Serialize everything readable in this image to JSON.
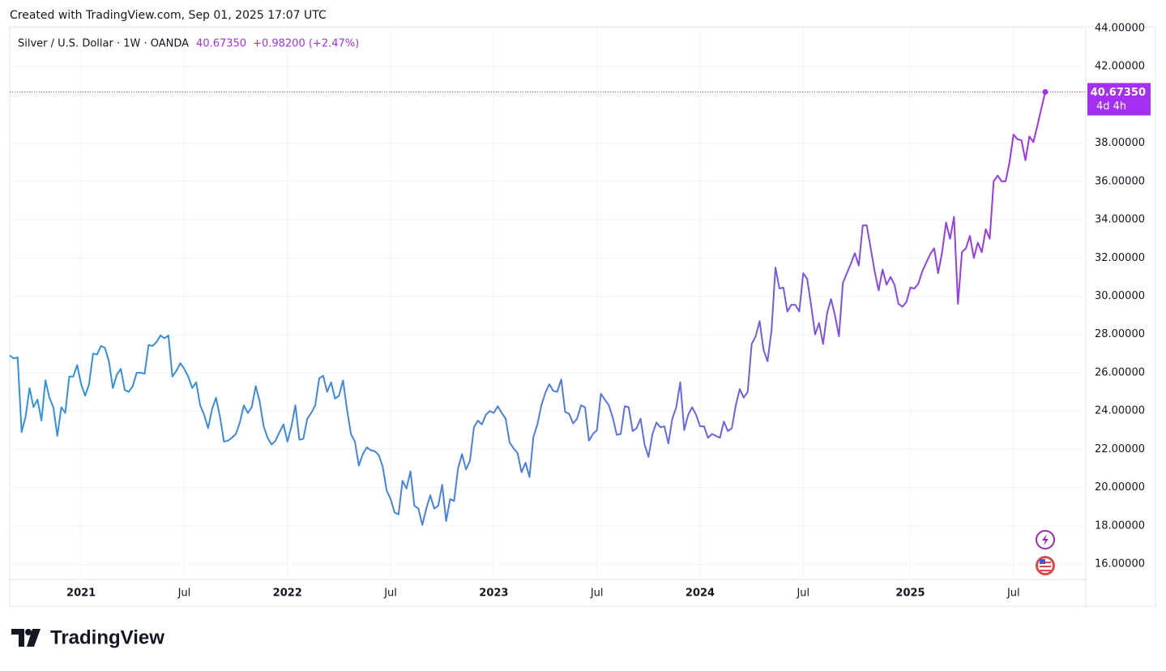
{
  "header": {
    "created": "Created with TradingView.com, Sep 01, 2025 17:07 UTC",
    "brand": "TradingView"
  },
  "chart_data": {
    "type": "line",
    "title": "Silver / U.S. Dollar · 1W · OANDA",
    "last_label": "40.67350",
    "change_label": "+0.98200 (+2.47%)",
    "countdown": "4d 4h",
    "last_color": "#a42ff0",
    "categories": [
      null,
      null,
      null,
      null,
      null,
      null,
      null,
      null,
      null,
      null,
      null,
      null,
      null,
      null,
      null,
      null,
      null,
      null,
      "2021",
      null,
      null,
      null,
      null,
      null,
      null,
      null,
      null,
      null,
      null,
      null,
      null,
      null,
      null,
      null,
      null,
      null,
      null,
      null,
      null,
      null,
      null,
      null,
      null,
      null,
      "Jul",
      null,
      null,
      null,
      null,
      null,
      null,
      null,
      null,
      null,
      null,
      null,
      null,
      null,
      null,
      null,
      null,
      null,
      null,
      null,
      null,
      null,
      null,
      null,
      null,
      null,
      "2022",
      null,
      null,
      null,
      null,
      null,
      null,
      null,
      null,
      null,
      null,
      null,
      null,
      null,
      null,
      null,
      null,
      null,
      null,
      null,
      null,
      null,
      null,
      null,
      null,
      null,
      "Jul",
      null,
      null,
      null,
      null,
      null,
      null,
      null,
      null,
      null,
      null,
      null,
      null,
      null,
      null,
      null,
      null,
      null,
      null,
      null,
      null,
      null,
      null,
      null,
      null,
      null,
      "2023",
      null,
      null,
      null,
      null,
      null,
      null,
      null,
      null,
      null,
      null,
      null,
      null,
      null,
      null,
      null,
      null,
      null,
      null,
      null,
      null,
      null,
      null,
      null,
      null,
      null,
      "Jul",
      null,
      null,
      null,
      null,
      null,
      null,
      null,
      null,
      null,
      null,
      null,
      null,
      null,
      null,
      null,
      null,
      null,
      null,
      null,
      null,
      null,
      null,
      null,
      null,
      null,
      "2024",
      null,
      null,
      null,
      null,
      null,
      null,
      null,
      null,
      null,
      null,
      null,
      null,
      null,
      null,
      null,
      null,
      null,
      null,
      null,
      null,
      null,
      null,
      null,
      null,
      null,
      "Jul",
      null,
      null,
      null,
      null,
      null,
      null,
      null,
      null,
      null,
      null,
      null,
      null,
      null,
      null,
      null,
      null,
      null,
      null,
      null,
      null,
      null,
      null,
      null,
      null,
      null,
      null,
      "2025",
      null,
      null,
      null,
      null,
      null,
      null,
      null,
      null,
      null,
      null,
      null,
      null,
      null,
      null,
      null,
      null,
      null,
      null,
      null,
      null,
      null,
      null,
      null,
      null,
      null,
      "Jul",
      null,
      null,
      null,
      null,
      null,
      null,
      null,
      null
    ],
    "series": [
      {
        "colors": [
          "#2f93e0",
          "#4a7fe6",
          "#a42ff0"
        ],
        "values": [
          26.9,
          26.75,
          26.8,
          22.9,
          23.7,
          25.2,
          24.2,
          24.6,
          23.5,
          25.6,
          24.7,
          24.2,
          22.7,
          24.2,
          23.9,
          25.8,
          25.8,
          26.4,
          25.4,
          24.8,
          25.4,
          27.0,
          26.95,
          27.4,
          27.3,
          26.6,
          25.2,
          25.9,
          26.2,
          25.1,
          25.0,
          25.3,
          26.0,
          26.0,
          25.95,
          27.45,
          27.4,
          27.6,
          27.95,
          27.8,
          27.95,
          25.8,
          26.1,
          26.5,
          26.2,
          25.8,
          25.2,
          25.5,
          24.3,
          23.8,
          23.1,
          24.1,
          24.7,
          23.7,
          22.4,
          22.45,
          22.6,
          22.8,
          23.4,
          24.3,
          23.9,
          24.2,
          25.3,
          24.5,
          23.2,
          22.6,
          22.25,
          22.45,
          22.9,
          23.3,
          22.4,
          23.2,
          24.3,
          22.5,
          22.55,
          23.6,
          23.9,
          24.3,
          25.7,
          25.85,
          25.0,
          25.5,
          24.65,
          24.8,
          25.6,
          24.1,
          22.8,
          22.4,
          21.15,
          21.75,
          22.1,
          21.95,
          21.9,
          21.7,
          21.1,
          19.85,
          19.4,
          18.7,
          18.6,
          20.35,
          19.95,
          20.85,
          19.05,
          18.9,
          18.05,
          18.9,
          19.6,
          18.9,
          19.05,
          20.15,
          18.25,
          19.4,
          19.3,
          21.0,
          21.75,
          20.95,
          21.4,
          23.15,
          23.5,
          23.3,
          23.8,
          24.0,
          23.9,
          24.25,
          23.9,
          23.6,
          22.35,
          22.05,
          21.8,
          20.8,
          21.3,
          20.55,
          22.65,
          23.3,
          24.3,
          24.95,
          25.4,
          25.05,
          25.0,
          25.65,
          23.95,
          23.85,
          23.35,
          23.6,
          24.3,
          24.2,
          22.45,
          22.8,
          23.0,
          24.9,
          24.6,
          24.3,
          23.65,
          22.75,
          22.8,
          24.25,
          24.2,
          22.95,
          23.1,
          23.6,
          22.25,
          21.6,
          22.8,
          23.4,
          23.15,
          23.2,
          22.3,
          23.6,
          24.2,
          25.5,
          23.0,
          23.8,
          24.2,
          23.8,
          23.2,
          23.2,
          22.6,
          22.8,
          22.7,
          22.6,
          23.45,
          22.95,
          23.1,
          24.3,
          25.15,
          24.7,
          25.0,
          27.5,
          27.9,
          28.7,
          27.2,
          26.6,
          28.2,
          31.5,
          30.4,
          30.45,
          29.2,
          29.55,
          29.55,
          29.2,
          31.2,
          30.9,
          29.5,
          28.0,
          28.6,
          27.5,
          29.1,
          29.85,
          29.0,
          27.9,
          30.7,
          31.2,
          31.7,
          32.25,
          31.6,
          33.7,
          33.7,
          32.5,
          31.3,
          30.3,
          31.4,
          30.6,
          31.0,
          30.6,
          29.6,
          29.45,
          29.7,
          30.45,
          30.4,
          30.65,
          31.3,
          31.75,
          32.2,
          32.5,
          31.2,
          32.3,
          33.85,
          33.0,
          34.15,
          29.6,
          32.3,
          32.5,
          33.15,
          32.0,
          32.8,
          32.3,
          33.5,
          33.0,
          36.0,
          36.3,
          36.0,
          36.0,
          37.0,
          38.45,
          38.2,
          38.15,
          37.1,
          38.35,
          38.05,
          38.9,
          39.8,
          40.6735
        ]
      }
    ],
    "ylim": [
      15.2,
      44.08
    ],
    "yticks": [
      {
        "value": 16,
        "label": "16.00000"
      },
      {
        "value": 18,
        "label": "18.00000"
      },
      {
        "value": 20,
        "label": "20.00000"
      },
      {
        "value": 22,
        "label": "22.00000"
      },
      {
        "value": 24,
        "label": "24.00000"
      },
      {
        "value": 26,
        "label": "26.00000"
      },
      {
        "value": 28,
        "label": "28.00000"
      },
      {
        "value": 30,
        "label": "30.00000"
      },
      {
        "value": 32,
        "label": "32.00000"
      },
      {
        "value": 34,
        "label": "34.00000"
      },
      {
        "value": 36,
        "label": "36.00000"
      },
      {
        "value": 38,
        "label": "38.00000"
      },
      {
        "value": 42,
        "label": "42.00000"
      },
      {
        "value": 44,
        "label": "44.00000"
      }
    ],
    "grid": true
  }
}
